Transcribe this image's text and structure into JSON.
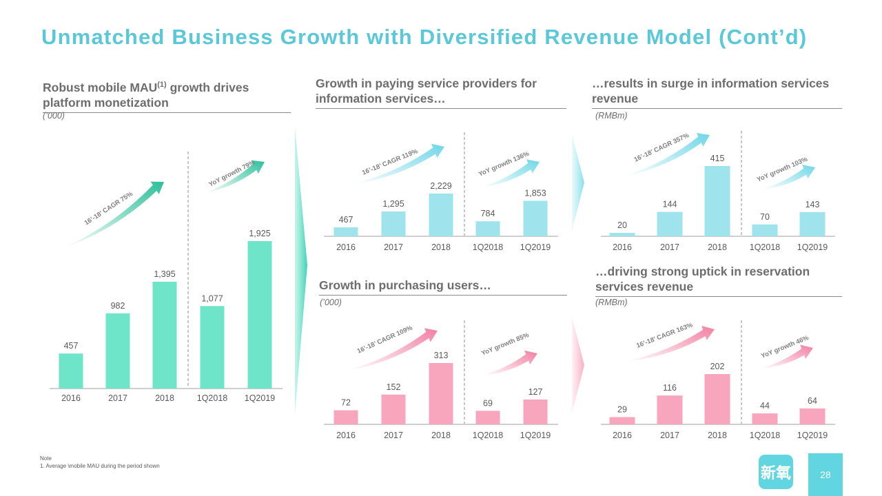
{
  "slide_title": "Unmatched Business Growth with Diversified Revenue Model (Cont’d)",
  "panels": [
    {
      "id": "mau",
      "title_pre": "Robust mobile MAU",
      "title_sup": "(1)",
      "title_post": " growth drives platform monetization",
      "unit": "(’000)"
    },
    {
      "id": "providers",
      "title": "Growth in paying service providers for information services…",
      "unit": ""
    },
    {
      "id": "info_rev",
      "title": "…results in surge in information services revenue",
      "unit": "(RMBm)"
    },
    {
      "id": "purchasing",
      "title": "Growth in purchasing users…",
      "unit": "(’000)"
    },
    {
      "id": "resv_rev",
      "title": "…driving strong uptick in reservation services revenue",
      "unit": "(RMBm)"
    }
  ],
  "note": {
    "heading": "Note",
    "text": "1. Average \\mobile MAU during the period shown"
  },
  "logo_text": "新氧",
  "page_number": "28",
  "colors": {
    "title": "#5bc8d8",
    "mau_bar": "#6ee4c9",
    "info_bar": "#9fe3ec",
    "pink_bar": "#f7a6be",
    "axis": "#bfbfbf"
  },
  "chart_data": [
    {
      "type": "bar",
      "id": "mau",
      "categories": [
        "2016",
        "2017",
        "2018",
        "1Q2018",
        "1Q2019"
      ],
      "values": [
        457,
        982,
        1395,
        1077,
        1925
      ],
      "value_labels": [
        "457",
        "982",
        "1,395",
        "1,077",
        "1,925"
      ],
      "ylim": [
        0,
        1925
      ],
      "annotations": [
        "16’-18’ CAGR 75%",
        "YoY growth 79%"
      ]
    },
    {
      "type": "bar",
      "id": "providers",
      "categories": [
        "2016",
        "2017",
        "2018",
        "1Q2018",
        "1Q2019"
      ],
      "values": [
        467,
        1295,
        2229,
        784,
        1853
      ],
      "value_labels": [
        "467",
        "1,295",
        "2,229",
        "784",
        "1,853"
      ],
      "ylim": [
        0,
        2229
      ],
      "annotations": [
        "16’-18’ CAGR 119%",
        "YoY growth 136%"
      ]
    },
    {
      "type": "bar",
      "id": "info_rev",
      "categories": [
        "2016",
        "2017",
        "2018",
        "1Q2018",
        "1Q2019"
      ],
      "values": [
        20,
        144,
        415,
        70,
        143
      ],
      "value_labels": [
        "20",
        "144",
        "415",
        "70",
        "143"
      ],
      "ylim": [
        0,
        415
      ],
      "annotations": [
        "16’-18’ CAGR 357%",
        "YoY growth 103%"
      ]
    },
    {
      "type": "bar",
      "id": "purchasing",
      "categories": [
        "2016",
        "2017",
        "2018",
        "1Q2018",
        "1Q2019"
      ],
      "values": [
        72,
        152,
        313,
        69,
        127
      ],
      "value_labels": [
        "72",
        "152",
        "313",
        "69",
        "127"
      ],
      "ylim": [
        0,
        313
      ],
      "annotations": [
        "16’-18’ CAGR 109%",
        "YoY growth 85%"
      ]
    },
    {
      "type": "bar",
      "id": "resv_rev",
      "categories": [
        "2016",
        "2017",
        "2018",
        "1Q2018",
        "1Q2019"
      ],
      "values": [
        29,
        116,
        202,
        44,
        64
      ],
      "value_labels": [
        "29",
        "116",
        "202",
        "44",
        "64"
      ],
      "ylim": [
        0,
        202
      ],
      "annotations": [
        "16’-18’ CAGR 163%",
        "YoY growth 46%"
      ]
    }
  ]
}
